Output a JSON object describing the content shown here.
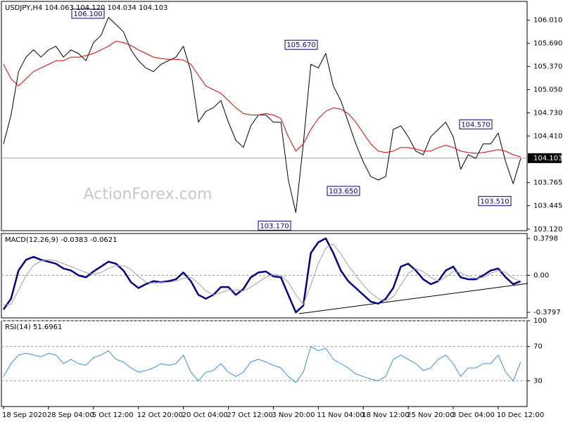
{
  "chart_data": [
    {
      "type": "line",
      "title": "USDJPY,H4  104.063 104.120 104.034 104.103",
      "watermark": "ActionForex.com",
      "ylim": [
        103.1,
        106.27
      ],
      "yticks": [
        {
          "value": 106.01,
          "label": "106.010"
        },
        {
          "value": 105.69,
          "label": "105.690"
        },
        {
          "value": 105.37,
          "label": "105.370"
        },
        {
          "value": 105.05,
          "label": "105.050"
        },
        {
          "value": 104.73,
          "label": "104.730"
        },
        {
          "value": 104.41,
          "label": "104.410"
        },
        103.765,
        103.445,
        {
          "value": 103.12,
          "label": "103.120"
        }
      ],
      "last": {
        "value": 104.103,
        "label": "104.103"
      },
      "annotations": [
        {
          "value": 106.1,
          "label": "106.100"
        },
        {
          "value": 105.67,
          "label": "105.670"
        },
        {
          "value": 103.17,
          "label": "103.170"
        },
        {
          "value": 103.65,
          "label": "103.650"
        },
        {
          "value": 104.57,
          "label": "104.570"
        },
        {
          "value": 103.51,
          "label": "103.510"
        }
      ],
      "series": [
        {
          "color": "#000000",
          "values": [
            104.3,
            104.7,
            105.3,
            105.5,
            105.6,
            105.5,
            105.6,
            105.65,
            105.5,
            105.6,
            105.55,
            105.45,
            105.7,
            105.8,
            106.05,
            105.95,
            105.85,
            105.6,
            105.45,
            105.35,
            105.3,
            105.4,
            105.45,
            105.5,
            105.65,
            105.3,
            104.6,
            104.75,
            104.8,
            104.9,
            104.6,
            104.35,
            104.25,
            104.55,
            104.7,
            104.7,
            104.6,
            104.6,
            103.8,
            103.35,
            104.3,
            105.4,
            105.35,
            105.55,
            105.1,
            104.9,
            104.6,
            104.3,
            104.05,
            103.85,
            103.8,
            103.85,
            104.5,
            104.55,
            104.4,
            104.2,
            104.15,
            104.4,
            104.5,
            104.6,
            104.4,
            103.95,
            104.15,
            104.1,
            104.3,
            104.3,
            104.45,
            104.05,
            103.75,
            104.1
          ]
        },
        {
          "color": "#e00000",
          "values": [
            105.4,
            105.2,
            105.1,
            105.2,
            105.3,
            105.35,
            105.4,
            105.45,
            105.45,
            105.5,
            105.5,
            105.52,
            105.55,
            105.6,
            105.65,
            105.72,
            105.7,
            105.66,
            105.6,
            105.55,
            105.5,
            105.48,
            105.47,
            105.47,
            105.46,
            105.4,
            105.25,
            105.1,
            105.05,
            105.0,
            104.9,
            104.8,
            104.72,
            104.7,
            104.7,
            104.72,
            104.7,
            104.65,
            104.4,
            104.2,
            104.3,
            104.5,
            104.65,
            104.75,
            104.8,
            104.78,
            104.72,
            104.6,
            104.45,
            104.3,
            104.2,
            104.18,
            104.2,
            104.25,
            104.25,
            104.23,
            104.2,
            104.2,
            104.25,
            104.28,
            104.25,
            104.2,
            104.18,
            104.17,
            104.18,
            104.2,
            104.22,
            104.2,
            104.15,
            104.12
          ]
        }
      ]
    },
    {
      "type": "line",
      "title": "MACD(12,26,9) -0.0383 -0.0621",
      "ylim": [
        -0.437,
        0.43
      ],
      "yticks": [
        0.3798,
        {
          "value": 0,
          "label": "0.00"
        },
        -0.3797
      ],
      "series": [
        {
          "color": "#00008b",
          "width": 2.5,
          "values": [
            -0.35,
            -0.24,
            0.05,
            0.16,
            0.19,
            0.16,
            0.14,
            0.12,
            0.07,
            0.05,
            0,
            -0.02,
            0.04,
            0.09,
            0.14,
            0.12,
            0.05,
            -0.07,
            -0.13,
            -0.09,
            -0.06,
            -0.07,
            -0.06,
            -0.04,
            0.03,
            -0.06,
            -0.2,
            -0.24,
            -0.2,
            -0.12,
            -0.12,
            -0.2,
            -0.14,
            -0.02,
            0.03,
            0.04,
            -0.01,
            -0.02,
            -0.2,
            -0.38,
            -0.31,
            0.23,
            0.34,
            0.38,
            0.23,
            0.05,
            -0.06,
            -0.13,
            -0.2,
            -0.27,
            -0.29,
            -0.24,
            -0.13,
            0.09,
            0.12,
            0.05,
            -0.04,
            -0.09,
            -0.06,
            0.05,
            0.09,
            -0.02,
            -0.04,
            -0.04,
            0,
            0.05,
            0.07,
            -0.02,
            -0.09,
            -0.06
          ]
        },
        {
          "color": "#a0a0a0",
          "width": 1,
          "values": [
            -0.3,
            -0.3,
            -0.15,
            0.0,
            0.1,
            0.15,
            0.16,
            0.15,
            0.12,
            0.09,
            0.06,
            0.03,
            0.01,
            0.03,
            0.07,
            0.1,
            0.1,
            0.06,
            -0.01,
            -0.07,
            -0.08,
            -0.07,
            -0.07,
            -0.06,
            -0.03,
            -0.02,
            -0.08,
            -0.16,
            -0.2,
            -0.18,
            -0.15,
            -0.15,
            -0.16,
            -0.12,
            -0.07,
            -0.02,
            0.01,
            0.0,
            -0.07,
            -0.2,
            -0.3,
            -0.1,
            0.12,
            0.28,
            0.32,
            0.22,
            0.1,
            0.0,
            -0.1,
            -0.18,
            -0.24,
            -0.26,
            -0.22,
            -0.1,
            0.02,
            0.07,
            0.04,
            -0.02,
            -0.06,
            -0.02,
            0.04,
            0.03,
            -0.01,
            -0.03,
            -0.02,
            0.02,
            0.05,
            0.03,
            -0.03,
            -0.06
          ]
        }
      ]
    },
    {
      "type": "line",
      "title": "RSI(14) 51.6961",
      "ylim": [
        0,
        100
      ],
      "yticks": [
        30,
        70,
        100
      ],
      "grid": true,
      "categories": [
        "18 Sep 2020",
        null,
        null,
        null,
        null,
        null,
        "28 Sep 04:00",
        null,
        null,
        null,
        null,
        null,
        "5 Oct 12:00",
        null,
        null,
        null,
        null,
        null,
        "12 Oct 20:00",
        null,
        null,
        null,
        null,
        null,
        "20 Oct 04:00",
        null,
        null,
        null,
        null,
        null,
        "27 Oct 12:00",
        null,
        null,
        null,
        null,
        null,
        "3 Nov 20:00",
        null,
        null,
        null,
        null,
        null,
        "11 Nov 04:00",
        null,
        null,
        null,
        null,
        null,
        "18 Nov 12:00",
        null,
        null,
        null,
        null,
        null,
        "25 Nov 20:00",
        null,
        null,
        null,
        null,
        null,
        "3 Dec 04:00",
        null,
        null,
        null,
        null,
        null,
        "10 Dec 12:00",
        null,
        null,
        null
      ],
      "series": [
        {
          "color": "#3a8ee0",
          "width": 1,
          "values": [
            35,
            50,
            60,
            62,
            60,
            58,
            62,
            60,
            50,
            55,
            50,
            48,
            57,
            60,
            65,
            55,
            52,
            45,
            40,
            42,
            45,
            50,
            48,
            50,
            60,
            40,
            30,
            40,
            42,
            50,
            40,
            35,
            40,
            52,
            55,
            52,
            48,
            45,
            35,
            28,
            40,
            70,
            65,
            68,
            55,
            50,
            45,
            38,
            35,
            32,
            30,
            35,
            55,
            60,
            55,
            50,
            42,
            45,
            55,
            60,
            50,
            35,
            45,
            45,
            50,
            50,
            60,
            40,
            30,
            52
          ]
        }
      ]
    }
  ]
}
